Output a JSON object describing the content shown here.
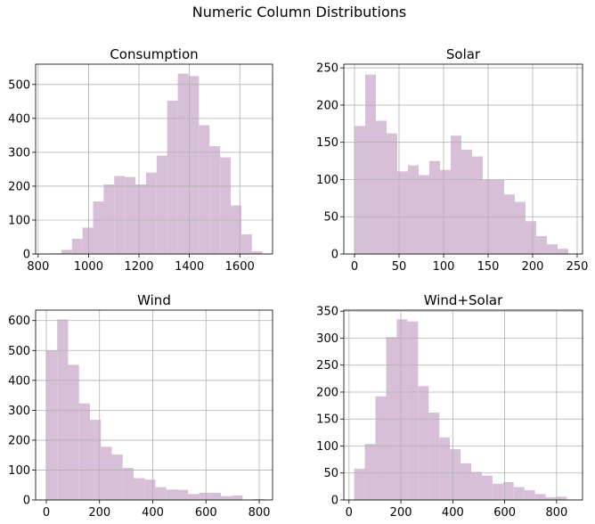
{
  "suptitle": "Numeric Column Distributions",
  "bar_color": "#d8bfd8",
  "chart_data": [
    {
      "type": "bar",
      "title": "Consumption",
      "xlim": [
        790,
        1730
      ],
      "ylim": [
        0,
        560
      ],
      "xticks": [
        800,
        1000,
        1200,
        1400,
        1600
      ],
      "yticks": [
        0,
        100,
        200,
        300,
        400,
        500
      ],
      "bin_start": 850,
      "bin_width": 42,
      "values": [
        2,
        12,
        45,
        78,
        155,
        205,
        230,
        227,
        205,
        240,
        290,
        452,
        532,
        525,
        380,
        318,
        285,
        143,
        58,
        8
      ]
    },
    {
      "type": "bar",
      "title": "Solar",
      "xlim": [
        -12,
        256
      ],
      "ylim": [
        0,
        255
      ],
      "xticks": [
        0,
        50,
        100,
        150,
        200,
        250
      ],
      "yticks": [
        0,
        50,
        100,
        150,
        200,
        250
      ],
      "bin_start": 0,
      "bin_width": 12,
      "values": [
        172,
        241,
        179,
        162,
        111,
        119,
        106,
        125,
        113,
        159,
        140,
        131,
        100,
        100,
        80,
        70,
        44,
        24,
        13,
        7
      ]
    },
    {
      "type": "bar",
      "title": "Wind",
      "xlim": [
        -40,
        850
      ],
      "ylim": [
        0,
        635
      ],
      "xticks": [
        0,
        200,
        400,
        600,
        800
      ],
      "yticks": [
        0,
        100,
        200,
        300,
        400,
        500,
        600
      ],
      "bin_start": 0,
      "bin_width": 41,
      "values": [
        500,
        604,
        452,
        323,
        268,
        178,
        152,
        107,
        73,
        68,
        43,
        35,
        34,
        20,
        24,
        24,
        13,
        15,
        0,
        3
      ]
    },
    {
      "type": "bar",
      "title": "Wind+Solar",
      "xlim": [
        -20,
        900
      ],
      "ylim": [
        0,
        352
      ],
      "xticks": [
        0,
        200,
        400,
        600,
        800
      ],
      "yticks": [
        0,
        50,
        100,
        150,
        200,
        250,
        300,
        350
      ],
      "bin_start": 20,
      "bin_width": 41,
      "values": [
        58,
        104,
        192,
        302,
        335,
        331,
        211,
        162,
        116,
        94,
        68,
        52,
        45,
        30,
        33,
        24,
        18,
        11,
        5,
        6
      ]
    }
  ]
}
